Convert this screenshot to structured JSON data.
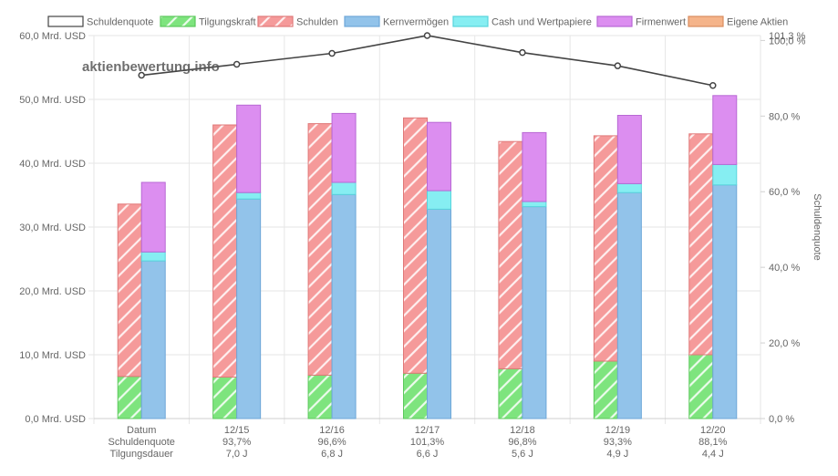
{
  "watermark": "aktienbewertung.info",
  "chart_data": {
    "type": "bar",
    "stacked": true,
    "categories": [
      [
        "Datum",
        "Schuldenquote",
        "Tilgungsdauer"
      ],
      [
        "12/15",
        "93,7%",
        "7,0 J"
      ],
      [
        "12/16",
        "96,6%",
        "6,8 J"
      ],
      [
        "12/17",
        "101,3%",
        "6,6 J"
      ],
      [
        "12/18",
        "96,8%",
        "5,6 J"
      ],
      [
        "12/19",
        "93,3%",
        "4,9 J"
      ],
      [
        "12/20",
        "88,1%",
        "4,4 J"
      ]
    ],
    "legend": [
      {
        "name": "Schuldenquote",
        "color": "#ffffff",
        "border": "#444444",
        "pattern": false
      },
      {
        "name": "Tilgungskraft",
        "color": "#7ee47e",
        "border": "#5cc85c",
        "pattern": true
      },
      {
        "name": "Schulden",
        "color": "#f59a9a",
        "border": "#e07878",
        "pattern": true
      },
      {
        "name": "Kernvermögen",
        "color": "#92c3ea",
        "border": "#6ea7d8",
        "pattern": false
      },
      {
        "name": "Cash und Wertpapiere",
        "color": "#86eef2",
        "border": "#58d4dc",
        "pattern": false
      },
      {
        "name": "Firmenwert",
        "color": "#dc8ef0",
        "border": "#b868d4",
        "pattern": false
      },
      {
        "name": "Eigene Aktien",
        "color": "#f5b48a",
        "border": "#d88c5e",
        "pattern": false
      }
    ],
    "left_stack": {
      "Tilgungskraft": [
        6.6,
        6.5,
        6.8,
        7.1,
        7.8,
        9.0,
        10.0
      ],
      "Schulden": [
        27.0,
        39.5,
        39.4,
        40.0,
        35.6,
        35.3,
        34.6
      ]
    },
    "right_stack": {
      "Kernvermögen": [
        24.7,
        34.4,
        35.1,
        32.8,
        33.2,
        35.4,
        36.6
      ],
      "Cash und Wertpapiere": [
        1.4,
        1.0,
        1.9,
        2.9,
        0.8,
        1.4,
        3.2
      ],
      "Firmenwert": [
        10.9,
        13.7,
        10.8,
        10.7,
        10.8,
        10.7,
        10.8
      ],
      "Eigene Aktien": [
        0,
        0,
        0,
        0,
        0,
        0,
        0
      ]
    },
    "line": {
      "name": "Schuldenquote",
      "values": [
        90.8,
        93.7,
        96.6,
        101.3,
        96.8,
        93.3,
        88.1
      ],
      "color": "#444444"
    },
    "y_left": {
      "min": 0,
      "max": 60,
      "step": 10,
      "tick_labels": [
        "0,0 Mrd. USD",
        "10,0 Mrd. USD",
        "20,0 Mrd. USD",
        "30,0 Mrd. USD",
        "40,0 Mrd. USD",
        "50,0 Mrd. USD",
        "60,0 Mrd. USD"
      ]
    },
    "y_right": {
      "label": "Schuldenquote",
      "min": 0,
      "max": 101.3,
      "ticks": [
        0,
        20,
        40,
        60,
        80,
        100
      ],
      "tick_labels": [
        "0,0 %",
        "20,0 %",
        "40,0 %",
        "60,0 %",
        "80,0 %",
        "100,0 %"
      ],
      "max_label": "101,3 %"
    },
    "grid": true,
    "legend_position": "top"
  }
}
